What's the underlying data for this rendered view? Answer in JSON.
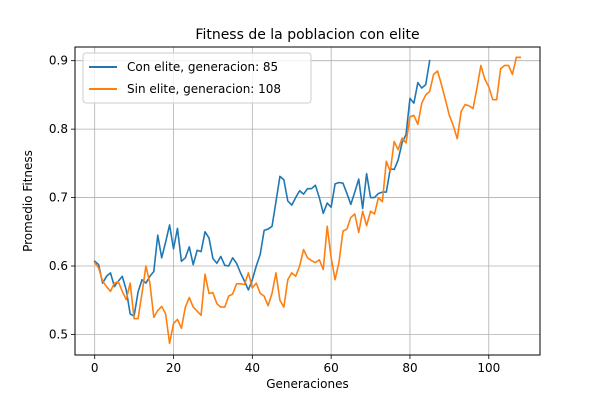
{
  "chart_data": {
    "type": "line",
    "title": "Fitness de la poblacion con elite",
    "xlabel": "Generaciones",
    "ylabel": "Promedio Fitness",
    "xlim": [
      -5,
      113
    ],
    "ylim": [
      0.47,
      0.92
    ],
    "xticks": [
      0,
      20,
      40,
      60,
      80,
      100
    ],
    "yticks": [
      0.5,
      0.6,
      0.7,
      0.8,
      0.9
    ],
    "xtick_labels": [
      "0",
      "20",
      "40",
      "60",
      "80",
      "100"
    ],
    "ytick_labels": [
      "0.5",
      "0.6",
      "0.7",
      "0.8",
      "0.9"
    ],
    "grid": true,
    "legend_position": "upper-left",
    "series": [
      {
        "name": "Con elite, generacion: 85",
        "color": "#1f77b4",
        "x": [
          0,
          1,
          2,
          3,
          4,
          5,
          6,
          7,
          8,
          9,
          10,
          11,
          12,
          13,
          14,
          15,
          16,
          17,
          18,
          19,
          20,
          21,
          22,
          23,
          24,
          25,
          26,
          27,
          28,
          29,
          30,
          31,
          32,
          33,
          34,
          35,
          36,
          37,
          38,
          39,
          40,
          41,
          42,
          43,
          44,
          45,
          46,
          47,
          48,
          49,
          50,
          51,
          52,
          53,
          54,
          55,
          56,
          57,
          58,
          59,
          60,
          61,
          62,
          63,
          64,
          65,
          66,
          67,
          68,
          69,
          70,
          71,
          72,
          73,
          74,
          75,
          76,
          77,
          78,
          79,
          80,
          81,
          82,
          83,
          84,
          85
        ],
        "y": [
          0.607,
          0.602,
          0.575,
          0.585,
          0.59,
          0.57,
          0.578,
          0.585,
          0.565,
          0.53,
          0.527,
          0.562,
          0.58,
          0.575,
          0.585,
          0.592,
          0.645,
          0.612,
          0.635,
          0.66,
          0.625,
          0.655,
          0.607,
          0.612,
          0.628,
          0.602,
          0.623,
          0.621,
          0.65,
          0.641,
          0.611,
          0.604,
          0.614,
          0.601,
          0.6,
          0.612,
          0.604,
          0.59,
          0.578,
          0.565,
          0.58,
          0.6,
          0.617,
          0.652,
          0.654,
          0.658,
          0.694,
          0.731,
          0.726,
          0.695,
          0.689,
          0.7,
          0.71,
          0.705,
          0.713,
          0.713,
          0.718,
          0.7,
          0.677,
          0.692,
          0.686,
          0.72,
          0.722,
          0.721,
          0.706,
          0.69,
          0.708,
          0.727,
          0.684,
          0.735,
          0.7,
          0.7,
          0.706,
          0.708,
          0.708,
          0.742,
          0.741,
          0.755,
          0.78,
          0.792,
          0.845,
          0.838,
          0.868,
          0.86,
          0.865,
          0.9
        ]
      },
      {
        "name": "Sin elite, generacion: 108",
        "color": "#ff7f0e",
        "x": [
          0,
          1,
          2,
          3,
          4,
          5,
          6,
          7,
          8,
          9,
          10,
          11,
          12,
          13,
          14,
          15,
          16,
          17,
          18,
          19,
          20,
          21,
          22,
          23,
          24,
          25,
          26,
          27,
          28,
          29,
          30,
          31,
          32,
          33,
          34,
          35,
          36,
          37,
          38,
          39,
          40,
          41,
          42,
          43,
          44,
          45,
          46,
          47,
          48,
          49,
          50,
          51,
          52,
          53,
          54,
          55,
          56,
          57,
          58,
          59,
          60,
          61,
          62,
          63,
          64,
          65,
          66,
          67,
          68,
          69,
          70,
          71,
          72,
          73,
          74,
          75,
          76,
          77,
          78,
          79,
          80,
          81,
          82,
          83,
          84,
          85,
          86,
          87,
          88,
          89,
          90,
          91,
          92,
          93,
          94,
          95,
          96,
          97,
          98,
          99,
          100,
          101,
          102,
          103,
          104,
          105,
          106,
          107,
          108
        ],
        "y": [
          0.605,
          0.597,
          0.578,
          0.57,
          0.563,
          0.575,
          0.577,
          0.563,
          0.551,
          0.575,
          0.523,
          0.523,
          0.56,
          0.6,
          0.575,
          0.525,
          0.535,
          0.541,
          0.53,
          0.487,
          0.516,
          0.522,
          0.509,
          0.54,
          0.554,
          0.54,
          0.534,
          0.528,
          0.588,
          0.56,
          0.561,
          0.545,
          0.54,
          0.54,
          0.556,
          0.559,
          0.574,
          0.574,
          0.573,
          0.59,
          0.568,
          0.575,
          0.56,
          0.556,
          0.542,
          0.56,
          0.59,
          0.55,
          0.54,
          0.58,
          0.59,
          0.585,
          0.6,
          0.624,
          0.612,
          0.608,
          0.605,
          0.609,
          0.595,
          0.658,
          0.612,
          0.58,
          0.606,
          0.651,
          0.654,
          0.671,
          0.676,
          0.649,
          0.68,
          0.659,
          0.68,
          0.676,
          0.7,
          0.694,
          0.753,
          0.738,
          0.782,
          0.77,
          0.787,
          0.78,
          0.818,
          0.82,
          0.807,
          0.838,
          0.85,
          0.855,
          0.88,
          0.885,
          0.865,
          0.843,
          0.82,
          0.805,
          0.786,
          0.826,
          0.836,
          0.834,
          0.83,
          0.86,
          0.893,
          0.873,
          0.862,
          0.843,
          0.843,
          0.888,
          0.893,
          0.893,
          0.88,
          0.905,
          0.905
        ]
      }
    ]
  }
}
